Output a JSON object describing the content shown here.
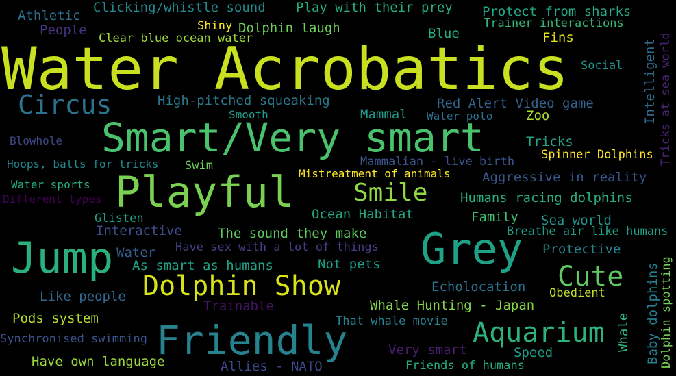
{
  "word_cloud": {
    "words": [
      {
        "text": "Water Acrobatics",
        "color": "#c8e020"
      },
      {
        "text": "Smart/Very smart",
        "color": "#4ac16d"
      },
      {
        "text": "Playful",
        "color": "#7ad151"
      },
      {
        "text": "Grey",
        "color": "#1fa187"
      },
      {
        "text": "Jump",
        "color": "#2ab07f"
      },
      {
        "text": "Friendly",
        "color": "#26828e"
      },
      {
        "text": "Dolphin Show",
        "color": "#d8e219"
      },
      {
        "text": "Aquarium",
        "color": "#2db27d"
      },
      {
        "text": "Cute",
        "color": "#5ec962"
      },
      {
        "text": "Circus",
        "color": "#2c728e"
      },
      {
        "text": "Smile",
        "color": "#90d743"
      },
      {
        "text": "Clicking/whistle sound",
        "color": "#23888e"
      },
      {
        "text": "Play with their prey",
        "color": "#26ad81"
      },
      {
        "text": "Protect from sharks",
        "color": "#22a884"
      },
      {
        "text": "Athletic",
        "color": "#2c728e"
      },
      {
        "text": "People",
        "color": "#46327e"
      },
      {
        "text": "Shiny",
        "color": "#fde725"
      },
      {
        "text": "Dolphin laugh",
        "color": "#6ece58"
      },
      {
        "text": "Trainer interactions",
        "color": "#35b779"
      },
      {
        "text": "Clear blue ocean water",
        "color": "#9fda3a"
      },
      {
        "text": "Blue",
        "color": "#27ad81"
      },
      {
        "text": "Fins",
        "color": "#e5e419"
      },
      {
        "text": "Social",
        "color": "#21918c"
      },
      {
        "text": "Intelligent",
        "color": "#31688e"
      },
      {
        "text": "Tricks at sea world",
        "color": "#482475"
      },
      {
        "text": "High-pitched squeaking",
        "color": "#2a788e"
      },
      {
        "text": "Smooth",
        "color": "#1e9b8a"
      },
      {
        "text": "Mammal",
        "color": "#1f9a8a"
      },
      {
        "text": "Red Alert Video game",
        "color": "#33638d"
      },
      {
        "text": "Water polo",
        "color": "#2c728e"
      },
      {
        "text": "Zoo",
        "color": "#addc30"
      },
      {
        "text": "Blowhole",
        "color": "#3e4989"
      },
      {
        "text": "Tricks",
        "color": "#21a685"
      },
      {
        "text": "Hoops, balls for tricks",
        "color": "#23898e"
      },
      {
        "text": "Swim",
        "color": "#6ccd5a"
      },
      {
        "text": "Mammalian - live birth",
        "color": "#3b528b"
      },
      {
        "text": "Spinner Dolphins",
        "color": "#fde725"
      },
      {
        "text": "Water sports",
        "color": "#27ad81"
      },
      {
        "text": "Mistreatment of animals",
        "color": "#fde725"
      },
      {
        "text": "Aggressive in reality",
        "color": "#39568c"
      },
      {
        "text": "Different types",
        "color": "#440154"
      },
      {
        "text": "Humans racing dolphins",
        "color": "#29af7f"
      },
      {
        "text": "Glisten",
        "color": "#1f9e89"
      },
      {
        "text": "Ocean Habitat",
        "color": "#22a884"
      },
      {
        "text": "Family",
        "color": "#42be71"
      },
      {
        "text": "Sea world",
        "color": "#1f948c"
      },
      {
        "text": "Interactive",
        "color": "#3e4c8a"
      },
      {
        "text": "The sound they make",
        "color": "#5ec962"
      },
      {
        "text": "Breathe air like humans",
        "color": "#1fa188"
      },
      {
        "text": "Water",
        "color": "#355f8d"
      },
      {
        "text": "Have sex with a lot of things",
        "color": "#424086"
      },
      {
        "text": "Protective",
        "color": "#25848e"
      },
      {
        "text": "As smart as humans",
        "color": "#20a386"
      },
      {
        "text": "Not pets",
        "color": "#1f9f88"
      },
      {
        "text": "Baby dolphins",
        "color": "#287d8e"
      },
      {
        "text": "Dolphin spotting",
        "color": "#75d054"
      },
      {
        "text": "Echolocation",
        "color": "#2d708e"
      },
      {
        "text": "Obedient",
        "color": "#bddf26"
      },
      {
        "text": "Like people",
        "color": "#31688e"
      },
      {
        "text": "Trainable",
        "color": "#471365"
      },
      {
        "text": "Whale Hunting - Japan",
        "color": "#86d549"
      },
      {
        "text": "Whale",
        "color": "#2fb47c"
      },
      {
        "text": "Pods system",
        "color": "#b5de2b"
      },
      {
        "text": "That whale movie",
        "color": "#26828e"
      },
      {
        "text": "Synchronised swimming",
        "color": "#3b528b"
      },
      {
        "text": "Very smart",
        "color": "#481d6f"
      },
      {
        "text": "Speed",
        "color": "#1f9f88"
      },
      {
        "text": "Have own language",
        "color": "#9bd93c"
      },
      {
        "text": "Allies - NATO",
        "color": "#3e4989"
      },
      {
        "text": "Friends of humans",
        "color": "#25ab82"
      }
    ]
  }
}
